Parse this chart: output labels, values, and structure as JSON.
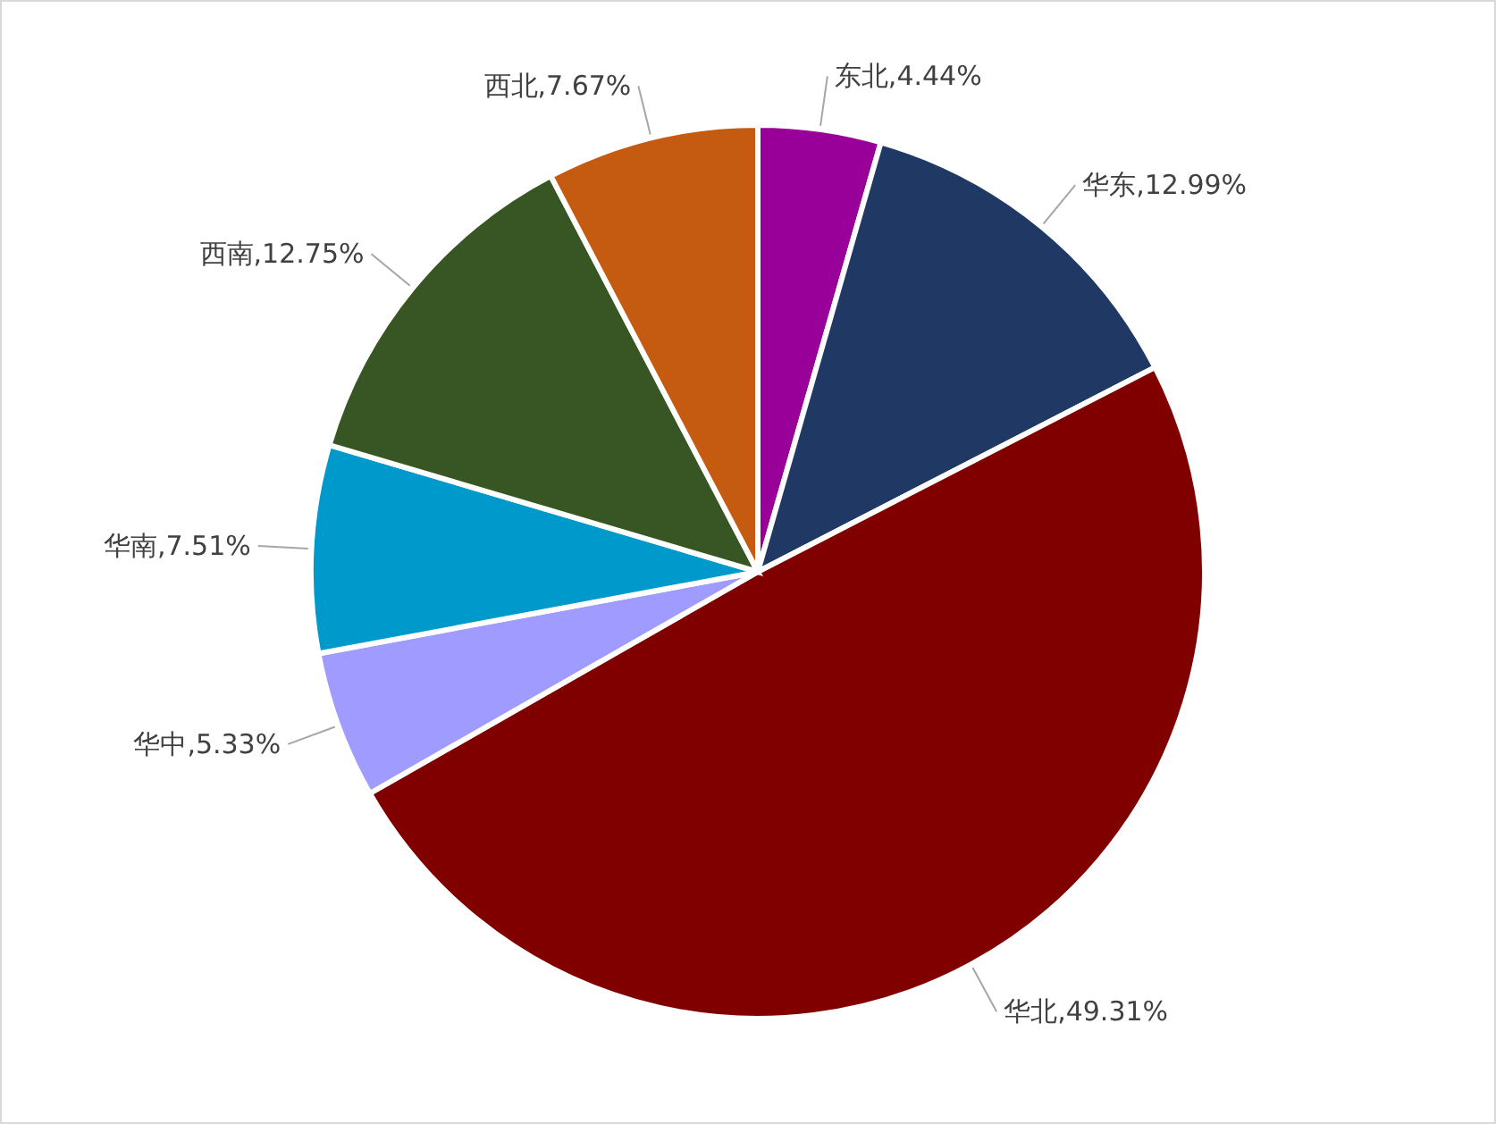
{
  "chart_data": {
    "type": "pie",
    "categories": [
      "东北",
      "华东",
      "华北",
      "华中",
      "华南",
      "西南",
      "西北"
    ],
    "values": [
      4.44,
      12.99,
      49.31,
      5.33,
      7.51,
      12.75,
      7.67
    ],
    "value_labels": [
      ",4.44%",
      ",12.99%",
      ",49.31%",
      ",5.33%",
      ",7.51%",
      ",12.75%",
      ",7.67%"
    ],
    "colors": [
      "#990099",
      "#1f3864",
      "#800000",
      "#a09cff",
      "#0099cc",
      "#375623",
      "#c55a11"
    ],
    "legend": false
  }
}
